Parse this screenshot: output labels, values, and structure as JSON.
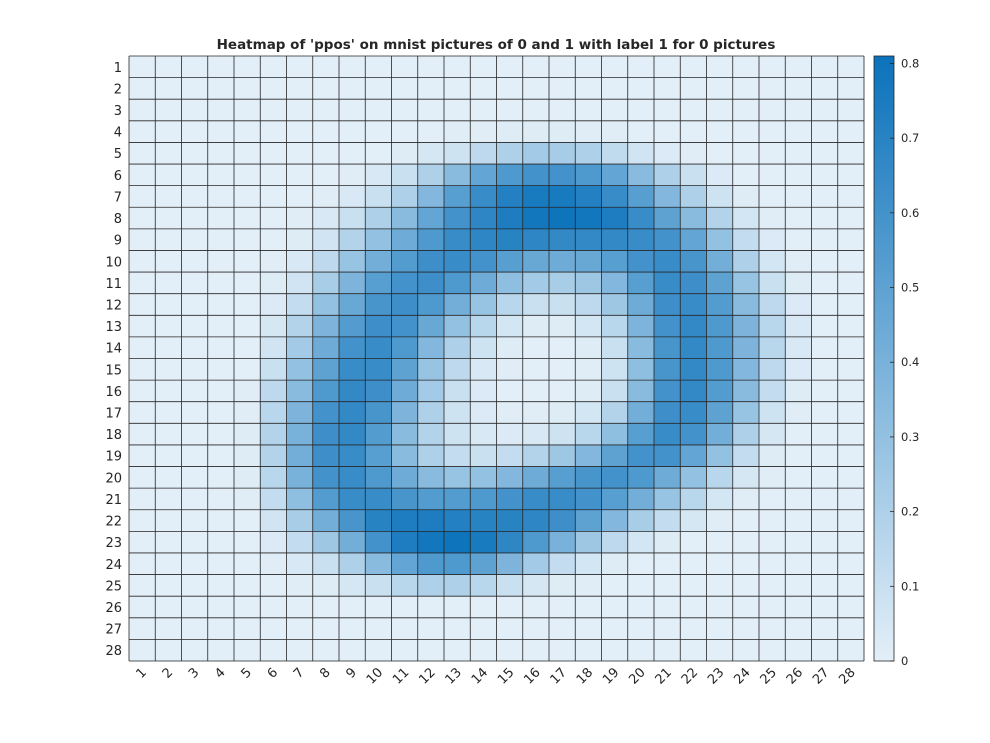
{
  "chart_data": {
    "type": "heatmap",
    "title": "Heatmap of 'ppos' on mnist pictures of 0 and 1 with label 1 for 0 pictures",
    "xlabel": "",
    "ylabel": "",
    "x_categories": [
      "1",
      "2",
      "3",
      "4",
      "5",
      "6",
      "7",
      "8",
      "9",
      "10",
      "11",
      "12",
      "13",
      "14",
      "15",
      "16",
      "17",
      "18",
      "19",
      "20",
      "21",
      "22",
      "23",
      "24",
      "25",
      "26",
      "27",
      "28"
    ],
    "y_categories": [
      "1",
      "2",
      "3",
      "4",
      "5",
      "6",
      "7",
      "8",
      "9",
      "10",
      "11",
      "12",
      "13",
      "14",
      "15",
      "16",
      "17",
      "18",
      "19",
      "20",
      "21",
      "22",
      "23",
      "24",
      "25",
      "26",
      "27",
      "28"
    ],
    "colorbar": {
      "min": 0,
      "max": 0.81,
      "ticks": [
        "0",
        "0.1",
        "0.2",
        "0.3",
        "0.4",
        "0.5",
        "0.6",
        "0.7",
        "0.8"
      ],
      "color_low": "#e3eff8",
      "color_high": "#0b72bb"
    },
    "gridlines": true,
    "values": [
      [
        0,
        0,
        0,
        0,
        0,
        0,
        0,
        0,
        0,
        0,
        0,
        0,
        0,
        0,
        0,
        0,
        0,
        0,
        0,
        0,
        0,
        0,
        0,
        0,
        0,
        0,
        0,
        0
      ],
      [
        0,
        0,
        0,
        0,
        0,
        0,
        0,
        0,
        0,
        0,
        0,
        0,
        0,
        0,
        0,
        0,
        0,
        0,
        0,
        0,
        0,
        0,
        0,
        0,
        0,
        0,
        0,
        0
      ],
      [
        0,
        0,
        0,
        0,
        0,
        0,
        0,
        0,
        0,
        0,
        0,
        0,
        0,
        0,
        0,
        0,
        0,
        0,
        0,
        0,
        0,
        0,
        0,
        0,
        0,
        0,
        0,
        0
      ],
      [
        0,
        0,
        0,
        0,
        0,
        0,
        0,
        0,
        0,
        0,
        0,
        0,
        0.01,
        0.01,
        0.02,
        0.02,
        0.02,
        0.01,
        0.01,
        0,
        0,
        0,
        0,
        0,
        0,
        0,
        0,
        0
      ],
      [
        0,
        0,
        0,
        0,
        0,
        0,
        0,
        0,
        0,
        0,
        0.02,
        0.05,
        0.08,
        0.14,
        0.2,
        0.24,
        0.23,
        0.2,
        0.13,
        0.07,
        0.03,
        0.01,
        0,
        0,
        0,
        0,
        0,
        0
      ],
      [
        0,
        0,
        0,
        0,
        0,
        0,
        0,
        0,
        0.01,
        0.04,
        0.1,
        0.2,
        0.34,
        0.48,
        0.56,
        0.6,
        0.6,
        0.56,
        0.48,
        0.34,
        0.2,
        0.1,
        0.03,
        0,
        0,
        0,
        0,
        0
      ],
      [
        0,
        0,
        0,
        0,
        0,
        0,
        0,
        0.01,
        0.04,
        0.1,
        0.2,
        0.36,
        0.52,
        0.64,
        0.72,
        0.76,
        0.76,
        0.72,
        0.64,
        0.52,
        0.36,
        0.2,
        0.08,
        0.02,
        0,
        0,
        0,
        0
      ],
      [
        0,
        0,
        0,
        0,
        0,
        0,
        0.01,
        0.04,
        0.1,
        0.2,
        0.34,
        0.48,
        0.6,
        0.68,
        0.74,
        0.78,
        0.8,
        0.78,
        0.74,
        0.64,
        0.5,
        0.34,
        0.18,
        0.06,
        0.01,
        0,
        0,
        0
      ],
      [
        0,
        0,
        0,
        0,
        0,
        0,
        0.02,
        0.07,
        0.18,
        0.3,
        0.44,
        0.56,
        0.64,
        0.68,
        0.7,
        0.68,
        0.66,
        0.66,
        0.66,
        0.64,
        0.6,
        0.48,
        0.3,
        0.12,
        0.03,
        0,
        0,
        0
      ],
      [
        0,
        0,
        0,
        0,
        0,
        0.01,
        0.04,
        0.14,
        0.28,
        0.42,
        0.54,
        0.62,
        0.64,
        0.6,
        0.52,
        0.46,
        0.44,
        0.46,
        0.52,
        0.6,
        0.64,
        0.58,
        0.42,
        0.2,
        0.06,
        0.01,
        0,
        0
      ],
      [
        0,
        0,
        0,
        0,
        0,
        0.02,
        0.07,
        0.22,
        0.38,
        0.52,
        0.6,
        0.62,
        0.56,
        0.44,
        0.32,
        0.24,
        0.22,
        0.26,
        0.36,
        0.52,
        0.64,
        0.62,
        0.5,
        0.28,
        0.1,
        0.02,
        0,
        0
      ],
      [
        0,
        0,
        0,
        0,
        0,
        0.03,
        0.12,
        0.3,
        0.46,
        0.58,
        0.62,
        0.56,
        0.42,
        0.28,
        0.16,
        0.1,
        0.1,
        0.14,
        0.26,
        0.44,
        0.62,
        0.64,
        0.54,
        0.34,
        0.14,
        0.03,
        0,
        0
      ],
      [
        0,
        0,
        0,
        0,
        0,
        0.05,
        0.18,
        0.38,
        0.54,
        0.62,
        0.6,
        0.46,
        0.3,
        0.16,
        0.06,
        0.02,
        0.02,
        0.06,
        0.16,
        0.38,
        0.6,
        0.66,
        0.56,
        0.38,
        0.16,
        0.04,
        0,
        0
      ],
      [
        0,
        0,
        0,
        0,
        0,
        0.07,
        0.24,
        0.44,
        0.6,
        0.64,
        0.56,
        0.36,
        0.2,
        0.08,
        0.02,
        0,
        0,
        0.02,
        0.1,
        0.34,
        0.58,
        0.66,
        0.56,
        0.38,
        0.16,
        0.04,
        0,
        0
      ],
      [
        0,
        0,
        0,
        0,
        0,
        0.1,
        0.3,
        0.5,
        0.64,
        0.64,
        0.5,
        0.28,
        0.14,
        0.04,
        0.01,
        0,
        0,
        0.01,
        0.08,
        0.32,
        0.58,
        0.66,
        0.56,
        0.36,
        0.14,
        0.03,
        0,
        0
      ],
      [
        0,
        0,
        0,
        0,
        0.01,
        0.14,
        0.34,
        0.56,
        0.66,
        0.62,
        0.44,
        0.24,
        0.1,
        0.03,
        0,
        0,
        0,
        0.02,
        0.1,
        0.34,
        0.6,
        0.66,
        0.54,
        0.34,
        0.12,
        0.02,
        0,
        0
      ],
      [
        0,
        0,
        0,
        0,
        0.01,
        0.16,
        0.38,
        0.6,
        0.66,
        0.58,
        0.38,
        0.2,
        0.08,
        0.03,
        0.01,
        0.01,
        0.02,
        0.06,
        0.18,
        0.42,
        0.62,
        0.64,
        0.5,
        0.28,
        0.08,
        0.01,
        0,
        0
      ],
      [
        0,
        0,
        0,
        0,
        0.02,
        0.18,
        0.4,
        0.62,
        0.66,
        0.54,
        0.34,
        0.18,
        0.08,
        0.04,
        0.03,
        0.04,
        0.08,
        0.16,
        0.32,
        0.52,
        0.64,
        0.6,
        0.42,
        0.2,
        0.05,
        0,
        0,
        0
      ],
      [
        0,
        0,
        0,
        0,
        0.02,
        0.18,
        0.42,
        0.62,
        0.64,
        0.52,
        0.34,
        0.2,
        0.12,
        0.1,
        0.12,
        0.18,
        0.26,
        0.36,
        0.5,
        0.6,
        0.6,
        0.48,
        0.3,
        0.12,
        0.02,
        0,
        0,
        0
      ],
      [
        0,
        0,
        0,
        0,
        0.02,
        0.16,
        0.4,
        0.6,
        0.64,
        0.56,
        0.44,
        0.34,
        0.28,
        0.3,
        0.36,
        0.44,
        0.52,
        0.58,
        0.6,
        0.56,
        0.44,
        0.3,
        0.16,
        0.05,
        0.01,
        0,
        0,
        0
      ],
      [
        0,
        0,
        0,
        0,
        0.01,
        0.12,
        0.32,
        0.54,
        0.64,
        0.64,
        0.58,
        0.54,
        0.54,
        0.56,
        0.6,
        0.64,
        0.64,
        0.6,
        0.52,
        0.42,
        0.28,
        0.16,
        0.06,
        0.01,
        0,
        0,
        0,
        0
      ],
      [
        0,
        0,
        0,
        0,
        0,
        0.07,
        0.22,
        0.42,
        0.58,
        0.7,
        0.74,
        0.74,
        0.72,
        0.7,
        0.7,
        0.68,
        0.62,
        0.5,
        0.36,
        0.22,
        0.12,
        0.05,
        0.01,
        0,
        0,
        0,
        0,
        0
      ],
      [
        0,
        0,
        0,
        0,
        0,
        0.03,
        0.12,
        0.26,
        0.42,
        0.6,
        0.74,
        0.78,
        0.8,
        0.76,
        0.68,
        0.56,
        0.4,
        0.26,
        0.14,
        0.06,
        0.02,
        0,
        0,
        0,
        0,
        0,
        0,
        0
      ],
      [
        0,
        0,
        0,
        0,
        0,
        0.01,
        0.04,
        0.1,
        0.2,
        0.34,
        0.48,
        0.56,
        0.56,
        0.5,
        0.38,
        0.24,
        0.12,
        0.06,
        0.02,
        0,
        0,
        0,
        0,
        0,
        0,
        0,
        0,
        0
      ],
      [
        0,
        0,
        0,
        0,
        0,
        0,
        0.01,
        0.02,
        0.05,
        0.1,
        0.16,
        0.2,
        0.2,
        0.16,
        0.1,
        0.05,
        0.02,
        0.01,
        0,
        0,
        0,
        0,
        0,
        0,
        0,
        0,
        0,
        0
      ],
      [
        0,
        0,
        0,
        0,
        0,
        0,
        0,
        0,
        0,
        0,
        0,
        0,
        0,
        0,
        0,
        0,
        0,
        0,
        0,
        0,
        0,
        0,
        0,
        0,
        0,
        0,
        0,
        0
      ],
      [
        0,
        0,
        0,
        0,
        0,
        0,
        0,
        0,
        0,
        0,
        0,
        0,
        0,
        0,
        0,
        0,
        0,
        0,
        0,
        0,
        0,
        0,
        0,
        0,
        0,
        0,
        0,
        0
      ],
      [
        0,
        0,
        0,
        0,
        0,
        0,
        0,
        0,
        0,
        0,
        0,
        0,
        0,
        0,
        0,
        0,
        0,
        0,
        0,
        0,
        0,
        0,
        0,
        0,
        0,
        0,
        0,
        0
      ]
    ]
  }
}
